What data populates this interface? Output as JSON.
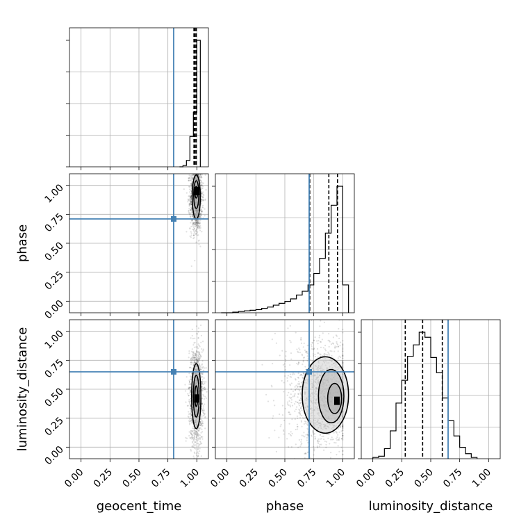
{
  "chart_data": {
    "type": "corner",
    "parameters": [
      "geocent_time",
      "phase",
      "luminosity_distance"
    ],
    "axis_range": [
      -0.1,
      1.1
    ],
    "tick_values": [
      0.0,
      0.25,
      0.5,
      0.75,
      1.0
    ],
    "tick_labels": [
      "0.00",
      "0.25",
      "0.50",
      "0.75",
      "1.00"
    ],
    "truth": {
      "geocent_time": 0.8,
      "phase": 0.71,
      "luminosity_distance": 0.65,
      "color": "#4682b4"
    },
    "histograms": [
      {
        "parameter": "geocent_time",
        "bin_edges": [
          0.85,
          0.88,
          0.91,
          0.94,
          0.97,
          1.0,
          1.03
        ],
        "counts": [
          0,
          0.01,
          0.05,
          0.24,
          0.43,
          1.0
        ],
        "quantiles": [
          0.975,
          0.985,
          0.995
        ]
      },
      {
        "parameter": "phase",
        "bin_edges": [
          -0.05,
          0.0,
          0.05,
          0.1,
          0.15,
          0.2,
          0.25,
          0.3,
          0.35,
          0.4,
          0.45,
          0.5,
          0.55,
          0.6,
          0.65,
          0.7,
          0.75,
          0.8,
          0.85,
          0.9,
          0.95,
          1.0,
          1.05
        ],
        "counts": [
          0,
          0,
          0.005,
          0.01,
          0.015,
          0.02,
          0.025,
          0.035,
          0.045,
          0.06,
          0.075,
          0.09,
          0.11,
          0.14,
          0.17,
          0.22,
          0.31,
          0.43,
          0.63,
          0.85,
          1.0,
          0.22
        ],
        "quantiles": [
          0.715,
          0.88,
          0.955
        ]
      },
      {
        "parameter": "luminosity_distance",
        "bin_edges": [
          0.0,
          0.05,
          0.1,
          0.15,
          0.2,
          0.25,
          0.3,
          0.35,
          0.4,
          0.45,
          0.5,
          0.55,
          0.6,
          0.65,
          0.7,
          0.75,
          0.8,
          0.85,
          0.9
        ],
        "counts": [
          0.01,
          0.02,
          0.08,
          0.22,
          0.44,
          0.62,
          0.81,
          0.9,
          1.0,
          0.96,
          0.8,
          0.68,
          0.48,
          0.3,
          0.18,
          0.09,
          0.04,
          0.01
        ],
        "quantiles": [
          0.28,
          0.43,
          0.6
        ]
      }
    ],
    "contours": [
      {
        "x": "geocent_time",
        "y": "phase",
        "levels": [
          {
            "cx": 0.995,
            "cy": 0.9,
            "rx": 0.035,
            "ry": 0.19
          },
          {
            "cx": 0.995,
            "cy": 0.92,
            "rx": 0.022,
            "ry": 0.12
          },
          {
            "cx": 0.995,
            "cy": 0.94,
            "rx": 0.012,
            "ry": 0.05
          }
        ],
        "mode": [
          1.0,
          0.95
        ]
      },
      {
        "x": "geocent_time",
        "y": "luminosity_distance",
        "levels": [
          {
            "cx": 0.995,
            "cy": 0.44,
            "rx": 0.04,
            "ry": 0.28
          },
          {
            "cx": 0.995,
            "cy": 0.44,
            "rx": 0.025,
            "ry": 0.18
          },
          {
            "cx": 0.995,
            "cy": 0.44,
            "rx": 0.012,
            "ry": 0.09
          }
        ],
        "mode": [
          1.0,
          0.42
        ]
      },
      {
        "x": "phase",
        "y": "luminosity_distance",
        "levels": [
          {
            "cx": 0.85,
            "cy": 0.45,
            "rx": 0.2,
            "ry": 0.33
          },
          {
            "cx": 0.9,
            "cy": 0.44,
            "rx": 0.11,
            "ry": 0.23
          },
          {
            "cx": 0.93,
            "cy": 0.42,
            "rx": 0.06,
            "ry": 0.13
          }
        ],
        "mode": [
          0.95,
          0.4
        ]
      }
    ]
  }
}
